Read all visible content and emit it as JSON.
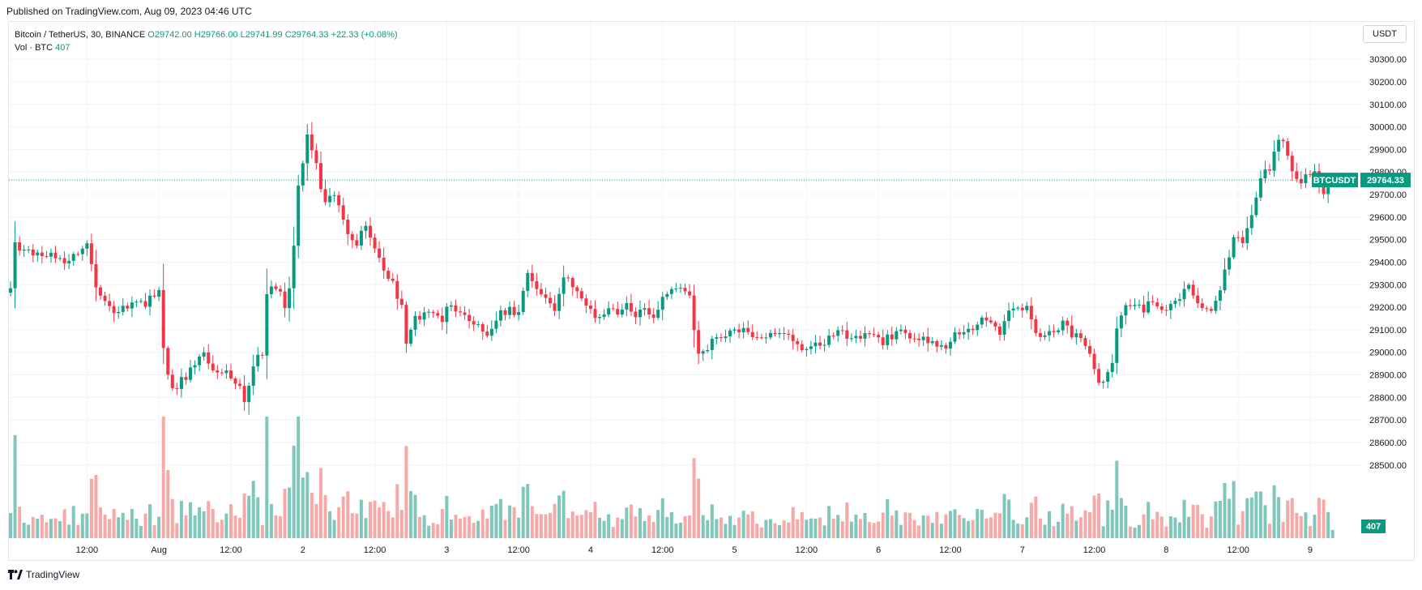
{
  "header": {
    "published": "Published on TradingView.com, Aug 09, 2023 04:46 UTC"
  },
  "legend": {
    "symbol": "Bitcoin / TetherUS, 30, BINANCE",
    "ohlc": "O29742.00 H29766.00 L29741.99 C29764.33 +22.33 (+0.08%)",
    "vol_label": "Vol · BTC",
    "vol_value": "407"
  },
  "currency_button": "USDT",
  "footer": {
    "brand": "TradingView"
  },
  "colors": {
    "up": "#089981",
    "down": "#f23645",
    "up_vol": "#7fc6bb",
    "down_vol": "#f7a9a7",
    "grid": "#f0f3fa"
  },
  "chart_data": {
    "type": "candlestick",
    "symbol_tag": "BTCUSDT",
    "last_price_label": "29764.33",
    "last_volume_label": "407",
    "ylim": [
      28420,
      30340
    ],
    "y_ticks": [
      28500,
      28600,
      28700,
      28800,
      28900,
      29000,
      29100,
      29200,
      29300,
      29400,
      29500,
      29600,
      29700,
      29800,
      29900,
      30000,
      30100,
      30200,
      30300
    ],
    "y_tick_labels": [
      "28500.00",
      "28600.00",
      "28700.00",
      "28800.00",
      "28900.00",
      "29000.00",
      "29100.00",
      "29200.00",
      "29300.00",
      "29400.00",
      "29500.00",
      "29600.00",
      "29700.00",
      "29800.00",
      "29900.00",
      "30000.00",
      "30100.00",
      "30200.00",
      "30300.00"
    ],
    "x_ticks": [
      {
        "label": "12:00",
        "bar": 17
      },
      {
        "label": "Aug",
        "bar": 33
      },
      {
        "label": "12:00",
        "bar": 49
      },
      {
        "label": "2",
        "bar": 65
      },
      {
        "label": "12:00",
        "bar": 81
      },
      {
        "label": "3",
        "bar": 97
      },
      {
        "label": "12:00",
        "bar": 113
      },
      {
        "label": "4",
        "bar": 129
      },
      {
        "label": "12:00",
        "bar": 145
      },
      {
        "label": "5",
        "bar": 161
      },
      {
        "label": "12:00",
        "bar": 177
      },
      {
        "label": "6",
        "bar": 193
      },
      {
        "label": "12:00",
        "bar": 209
      },
      {
        "label": "7",
        "bar": 225
      },
      {
        "label": "12:00",
        "bar": 241
      },
      {
        "label": "8",
        "bar": 257
      },
      {
        "label": "12:00",
        "bar": 273
      },
      {
        "label": "9",
        "bar": 289
      }
    ],
    "keyframes": [
      [
        0,
        29300
      ],
      [
        1,
        29470
      ],
      [
        5,
        29440
      ],
      [
        12,
        29410
      ],
      [
        17,
        29470
      ],
      [
        19,
        29300
      ],
      [
        23,
        29180
      ],
      [
        26,
        29200
      ],
      [
        30,
        29220
      ],
      [
        33,
        29270
      ],
      [
        34,
        29000
      ],
      [
        36,
        28830
      ],
      [
        40,
        28920
      ],
      [
        43,
        28990
      ],
      [
        46,
        28900
      ],
      [
        49,
        28900
      ],
      [
        51,
        28850
      ],
      [
        52,
        28780
      ],
      [
        54,
        28950
      ],
      [
        56,
        29000
      ],
      [
        57,
        29250
      ],
      [
        59,
        29300
      ],
      [
        61,
        29200
      ],
      [
        62,
        29300
      ],
      [
        63,
        29480
      ],
      [
        64,
        29750
      ],
      [
        66,
        29950
      ],
      [
        67,
        29880
      ],
      [
        68,
        29820
      ],
      [
        70,
        29650
      ],
      [
        72,
        29700
      ],
      [
        74,
        29600
      ],
      [
        75,
        29520
      ],
      [
        77,
        29480
      ],
      [
        79,
        29560
      ],
      [
        81,
        29480
      ],
      [
        83,
        29350
      ],
      [
        85,
        29300
      ],
      [
        87,
        29200
      ],
      [
        88,
        29020
      ],
      [
        90,
        29150
      ],
      [
        93,
        29180
      ],
      [
        96,
        29150
      ],
      [
        98,
        29220
      ],
      [
        100,
        29160
      ],
      [
        103,
        29120
      ],
      [
        106,
        29080
      ],
      [
        108,
        29150
      ],
      [
        111,
        29200
      ],
      [
        113,
        29170
      ],
      [
        115,
        29350
      ],
      [
        117,
        29280
      ],
      [
        119,
        29250
      ],
      [
        121,
        29200
      ],
      [
        123,
        29330
      ],
      [
        125,
        29300
      ],
      [
        127,
        29230
      ],
      [
        129,
        29180
      ],
      [
        131,
        29160
      ],
      [
        133,
        29210
      ],
      [
        135,
        29180
      ],
      [
        137,
        29220
      ],
      [
        139,
        29170
      ],
      [
        141,
        29200
      ],
      [
        143,
        29140
      ],
      [
        145,
        29230
      ],
      [
        147,
        29270
      ],
      [
        149,
        29280
      ],
      [
        151,
        29250
      ],
      [
        152,
        29100
      ],
      [
        153,
        29000
      ],
      [
        155,
        28990
      ],
      [
        156,
        29060
      ],
      [
        158,
        29080
      ],
      [
        160,
        29080
      ],
      [
        162,
        29100
      ],
      [
        164,
        29080
      ],
      [
        166,
        29060
      ],
      [
        170,
        29070
      ],
      [
        174,
        29060
      ],
      [
        176,
        29010
      ],
      [
        178,
        29040
      ],
      [
        180,
        29020
      ],
      [
        182,
        29060
      ],
      [
        184,
        29080
      ],
      [
        188,
        29070
      ],
      [
        192,
        29060
      ],
      [
        194,
        29050
      ],
      [
        196,
        29070
      ],
      [
        198,
        29100
      ],
      [
        200,
        29080
      ],
      [
        202,
        29060
      ],
      [
        204,
        29060
      ],
      [
        206,
        29020
      ],
      [
        208,
        29030
      ],
      [
        210,
        29080
      ],
      [
        212,
        29090
      ],
      [
        214,
        29110
      ],
      [
        216,
        29160
      ],
      [
        218,
        29120
      ],
      [
        220,
        29080
      ],
      [
        222,
        29200
      ],
      [
        224,
        29180
      ],
      [
        226,
        29200
      ],
      [
        228,
        29080
      ],
      [
        230,
        29060
      ],
      [
        232,
        29100
      ],
      [
        234,
        29130
      ],
      [
        236,
        29080
      ],
      [
        238,
        29050
      ],
      [
        240,
        28980
      ],
      [
        242,
        28880
      ],
      [
        243,
        28860
      ],
      [
        245,
        28950
      ],
      [
        246,
        29100
      ],
      [
        247,
        29180
      ],
      [
        249,
        29200
      ],
      [
        251,
        29220
      ],
      [
        252,
        29190
      ],
      [
        254,
        29240
      ],
      [
        256,
        29180
      ],
      [
        258,
        29200
      ],
      [
        260,
        29250
      ],
      [
        262,
        29280
      ],
      [
        264,
        29200
      ],
      [
        266,
        29180
      ],
      [
        268,
        29220
      ],
      [
        270,
        29360
      ],
      [
        272,
        29520
      ],
      [
        274,
        29490
      ],
      [
        276,
        29600
      ],
      [
        278,
        29770
      ],
      [
        280,
        29820
      ],
      [
        281,
        29900
      ],
      [
        283,
        29950
      ],
      [
        285,
        29820
      ],
      [
        287,
        29750
      ],
      [
        289,
        29790
      ],
      [
        290,
        29820
      ],
      [
        292,
        29710
      ],
      [
        293,
        29742
      ],
      [
        294,
        29764
      ]
    ],
    "last_bar_ohlc": {
      "open": 29742.0,
      "high": 29766.0,
      "low": 29741.99,
      "close": 29764.33
    },
    "last_volume": 407
  }
}
